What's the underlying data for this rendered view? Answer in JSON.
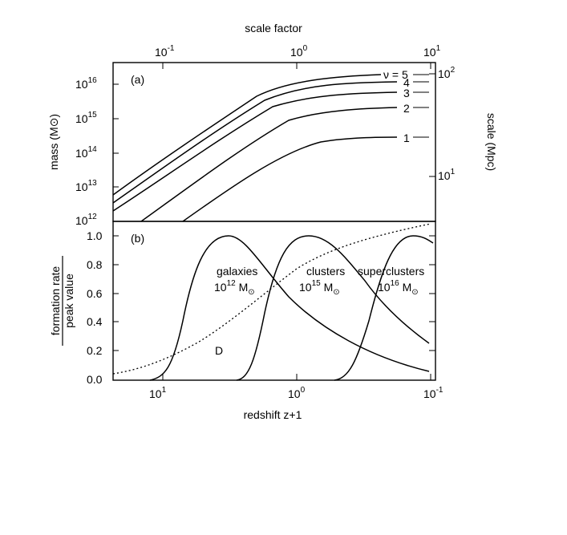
{
  "chart_data": [
    {
      "panel": "(a)",
      "type": "line",
      "top_axis_label": "scale factor",
      "top_ticks": [
        {
          "base": "10",
          "exp": "-1",
          "value": 0.1
        },
        {
          "base": "10",
          "exp": "0",
          "value": 1
        },
        {
          "base": "10",
          "exp": "1",
          "value": 10
        }
      ],
      "ylabel_left": "mass (M",
      "ylabel_left_end": ")",
      "yticks_left": [
        {
          "base": "10",
          "exp": "16",
          "value": 1e+16
        },
        {
          "base": "10",
          "exp": "15",
          "value": 1000000000000000.0
        },
        {
          "base": "10",
          "exp": "14",
          "value": 100000000000000.0
        },
        {
          "base": "10",
          "exp": "13",
          "value": 10000000000000.0
        },
        {
          "base": "10",
          "exp": "12",
          "value": 1000000000000.0
        }
      ],
      "ylabel_right": "scale (Mpc)",
      "yticks_right": [
        {
          "base": "10",
          "exp": "2",
          "value": 100
        },
        {
          "base": "10",
          "exp": "1",
          "value": 10
        }
      ],
      "ylim": [
        1000000000000.0,
        1e+17
      ],
      "xscale": "log",
      "xlim_scale_factor": [
        0.03,
        10
      ],
      "yscale": "log",
      "series_labels": [
        "ν = 5",
        "4",
        "3",
        "2",
        "1"
      ],
      "series": [
        {
          "name": "5",
          "start_x": 0.03,
          "start_y": 3000000000000.0,
          "plateau_y": 1.5e+16
        },
        {
          "name": "4",
          "start_x": 0.03,
          "start_y": 1800000000000.0,
          "plateau_y": 1.05e+16
        },
        {
          "name": "3",
          "start_x": 0.03,
          "start_y": 1100000000000.0,
          "plateau_y": 6500000000000000.0
        },
        {
          "name": "2",
          "start_x": 0.042,
          "start_y": 1000000000000.0,
          "plateau_y": 2800000000000000.0
        },
        {
          "name": "1",
          "start_x": 0.063,
          "start_y": 1000000000000.0,
          "plateau_y": 500000000000000.0
        }
      ]
    },
    {
      "panel": "(b)",
      "type": "line",
      "ylabel_top": "formation rate",
      "ylabel_bottom": "peak value",
      "yticks": [
        "0.0",
        "0.2",
        "0.4",
        "0.6",
        "0.8",
        "1.0"
      ],
      "ylim": [
        0,
        1.05
      ],
      "xlabel": "redshift  z+1",
      "xticks": [
        {
          "base": "10",
          "exp": "1",
          "value": 10
        },
        {
          "base": "10",
          "exp": "0",
          "value": 1
        },
        {
          "base": "10",
          "exp": "-1",
          "value": 0.1
        }
      ],
      "xscale": "log",
      "xlim": [
        33,
        0.1
      ],
      "series": [
        {
          "name": "galaxies",
          "mass_base": "10",
          "mass_exp": "12",
          "mass_unit": "M",
          "peak_at": 3.0,
          "values_x": [
            33,
            10,
            6,
            4,
            3,
            2,
            1.5,
            1,
            0.5,
            0.3,
            0.1
          ],
          "values_y": [
            0,
            0.04,
            0.55,
            0.93,
            1.0,
            0.85,
            0.72,
            0.5,
            0.3,
            0.2,
            0.05
          ]
        },
        {
          "name": "clusters",
          "mass_base": "10",
          "mass_exp": "15",
          "mass_unit": "M",
          "peak_at": 0.75,
          "values_x": [
            10,
            2.5,
            1.8,
            1.2,
            0.9,
            0.75,
            0.5,
            0.3,
            0.2,
            0.1
          ],
          "values_y": [
            0,
            0.0,
            0.15,
            0.65,
            0.93,
            1.0,
            0.9,
            0.7,
            0.55,
            0.25
          ]
        },
        {
          "name": "superclusters",
          "mass_base": "10",
          "mass_exp": "16",
          "mass_unit": "M",
          "peak_at": 0.13,
          "values_x": [
            1.2,
            0.6,
            0.4,
            0.25,
            0.18,
            0.13,
            0.1
          ],
          "values_y": [
            0,
            0.02,
            0.2,
            0.7,
            0.93,
            1.0,
            0.96
          ]
        },
        {
          "name": "D",
          "style": "dotted",
          "values_x": [
            33,
            20,
            10,
            5,
            3,
            2,
            1.3,
            1,
            0.6,
            0.4,
            0.25,
            0.15,
            0.1
          ],
          "values_y": [
            0.04,
            0.09,
            0.2,
            0.37,
            0.5,
            0.62,
            0.72,
            0.79,
            0.87,
            0.92,
            0.96,
            0.99,
            1.0
          ]
        }
      ],
      "panel_label": "(b)"
    }
  ]
}
